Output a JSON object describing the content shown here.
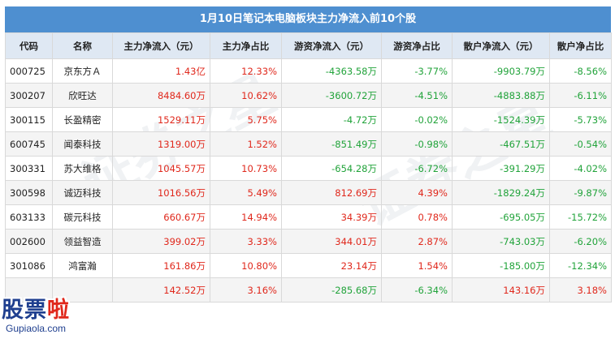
{
  "title": "1月10日笔记本电脑板块主力净流入前10个股",
  "headers": [
    "代码",
    "名称",
    "主力净流入（元）",
    "主力净占比",
    "游资净流入（元）",
    "游资净占比",
    "散户净流入（元）",
    "散户净占比"
  ],
  "rows": [
    [
      "000725",
      "京东方Ａ",
      "1.43亿",
      "12.33%",
      "-4363.58万",
      "-3.77%",
      "-9903.79万",
      "-8.56%"
    ],
    [
      "300207",
      "欣旺达",
      "8484.60万",
      "10.62%",
      "-3600.72万",
      "-4.51%",
      "-4883.88万",
      "-6.11%"
    ],
    [
      "300115",
      "长盈精密",
      "1529.11万",
      "5.75%",
      "-4.72万",
      "-0.02%",
      "-1524.39万",
      "-5.73%"
    ],
    [
      "600745",
      "闻泰科技",
      "1319.00万",
      "1.52%",
      "-851.49万",
      "-0.98%",
      "-467.51万",
      "-0.54%"
    ],
    [
      "300331",
      "苏大维格",
      "1045.57万",
      "10.73%",
      "-654.28万",
      "-6.72%",
      "-391.29万",
      "-4.02%"
    ],
    [
      "300598",
      "诚迈科技",
      "1016.56万",
      "5.49%",
      "812.69万",
      "4.39%",
      "-1829.24万",
      "-9.87%"
    ],
    [
      "603133",
      "碳元科技",
      "660.67万",
      "14.94%",
      "34.39万",
      "0.78%",
      "-695.05万",
      "-15.72%"
    ],
    [
      "002600",
      "领益智造",
      "399.02万",
      "3.33%",
      "344.01万",
      "2.87%",
      "-743.03万",
      "-6.20%"
    ],
    [
      "301086",
      "鸿富瀚",
      "161.86万",
      "10.80%",
      "23.14万",
      "1.54%",
      "-185.00万",
      "-12.34%"
    ],
    [
      "",
      "",
      "142.52万",
      "3.16%",
      "-285.68万",
      "-6.34%",
      "143.16万",
      "3.18%"
    ]
  ],
  "colors": {
    "header_bar": "#4e8fd0",
    "positive": "#e0281c",
    "negative": "#21a33a",
    "logo": "#1f3f8f"
  },
  "logo": {
    "text_main": "股票",
    "text_accent": "啦",
    "url": "Gupiaola.com"
  },
  "watermark": "证券之星"
}
